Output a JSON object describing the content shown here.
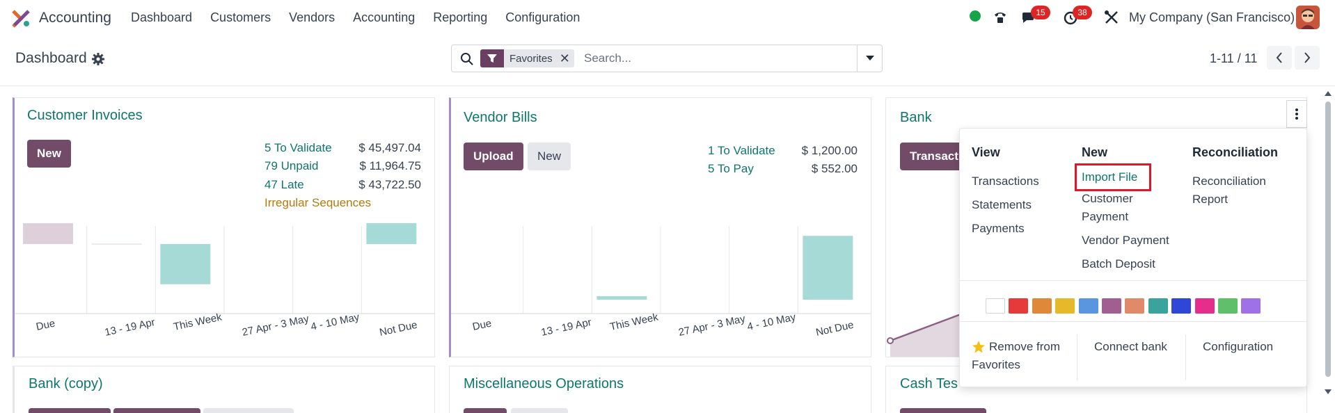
{
  "navbar": {
    "app_name": "Accounting",
    "menu": [
      "Dashboard",
      "Customers",
      "Vendors",
      "Accounting",
      "Reporting",
      "Configuration"
    ],
    "messages_count": "15",
    "activities_count": "38",
    "company": "My Company (San Francisco)"
  },
  "control": {
    "title": "Dashboard",
    "facet_label": "Favorites",
    "search_placeholder": "Search...",
    "pager": "1-11 / 11"
  },
  "cards": {
    "customer_invoices": {
      "title": "Customer Invoices",
      "new_label": "New",
      "stats": [
        {
          "label": "5 To Validate",
          "value": "$ 45,497.04"
        },
        {
          "label": "79 Unpaid",
          "value": "$ 11,964.75"
        },
        {
          "label": "47 Late",
          "value": "$ 43,722.50"
        }
      ],
      "warning": "Irregular Sequences"
    },
    "vendor_bills": {
      "title": "Vendor Bills",
      "upload_label": "Upload",
      "new_label": "New",
      "stats": [
        {
          "label": "1 To Validate",
          "value": "$ 1,200.00"
        },
        {
          "label": "5 To Pay",
          "value": "$ 552.00"
        }
      ]
    },
    "bank": {
      "title": "Bank",
      "transactions_label": "Transacti"
    },
    "bank_copy": {
      "title": "Bank (copy)"
    },
    "misc": {
      "title": "Miscellaneous Operations"
    },
    "cash": {
      "title": "Cash Tes"
    }
  },
  "chart_data": [
    {
      "type": "bar",
      "title": "",
      "categories": [
        "Due",
        "13 - 19 Apr",
        "This Week",
        "27 Apr - 3 May",
        "4 - 10 May",
        "Not Due"
      ],
      "values": [
        1.0,
        0.02,
        -1.7,
        0,
        0,
        0.9
      ]
    },
    {
      "type": "bar",
      "title": "",
      "categories": [
        "Due",
        "13 - 19 Apr",
        "This Week",
        "27 Apr - 3 May",
        "4 - 10 May",
        "Not Due"
      ],
      "values": [
        0,
        0,
        0.15,
        0,
        0,
        2.7
      ]
    }
  ],
  "dropdown": {
    "view_heading": "View",
    "view_items": [
      "Transactions",
      "Statements",
      "Payments"
    ],
    "new_heading": "New",
    "new_import": "Import File",
    "new_items": [
      "Customer",
      "Payment",
      "Vendor Payment",
      "Batch Deposit"
    ],
    "recon_heading": "Reconciliation",
    "recon_items": [
      "Reconciliation",
      "Report"
    ],
    "colors": [
      "#ffffff",
      "#e63a3a",
      "#e0883a",
      "#e6b82a",
      "#5a96e0",
      "#a05e91",
      "#e08a6a",
      "#3aa39a",
      "#2f47d6",
      "#e62d8c",
      "#5fbf6a",
      "#9e72e6"
    ],
    "remove_fav": [
      "Remove from",
      "Favorites"
    ],
    "connect_bank": "Connect bank",
    "configuration": "Configuration"
  }
}
